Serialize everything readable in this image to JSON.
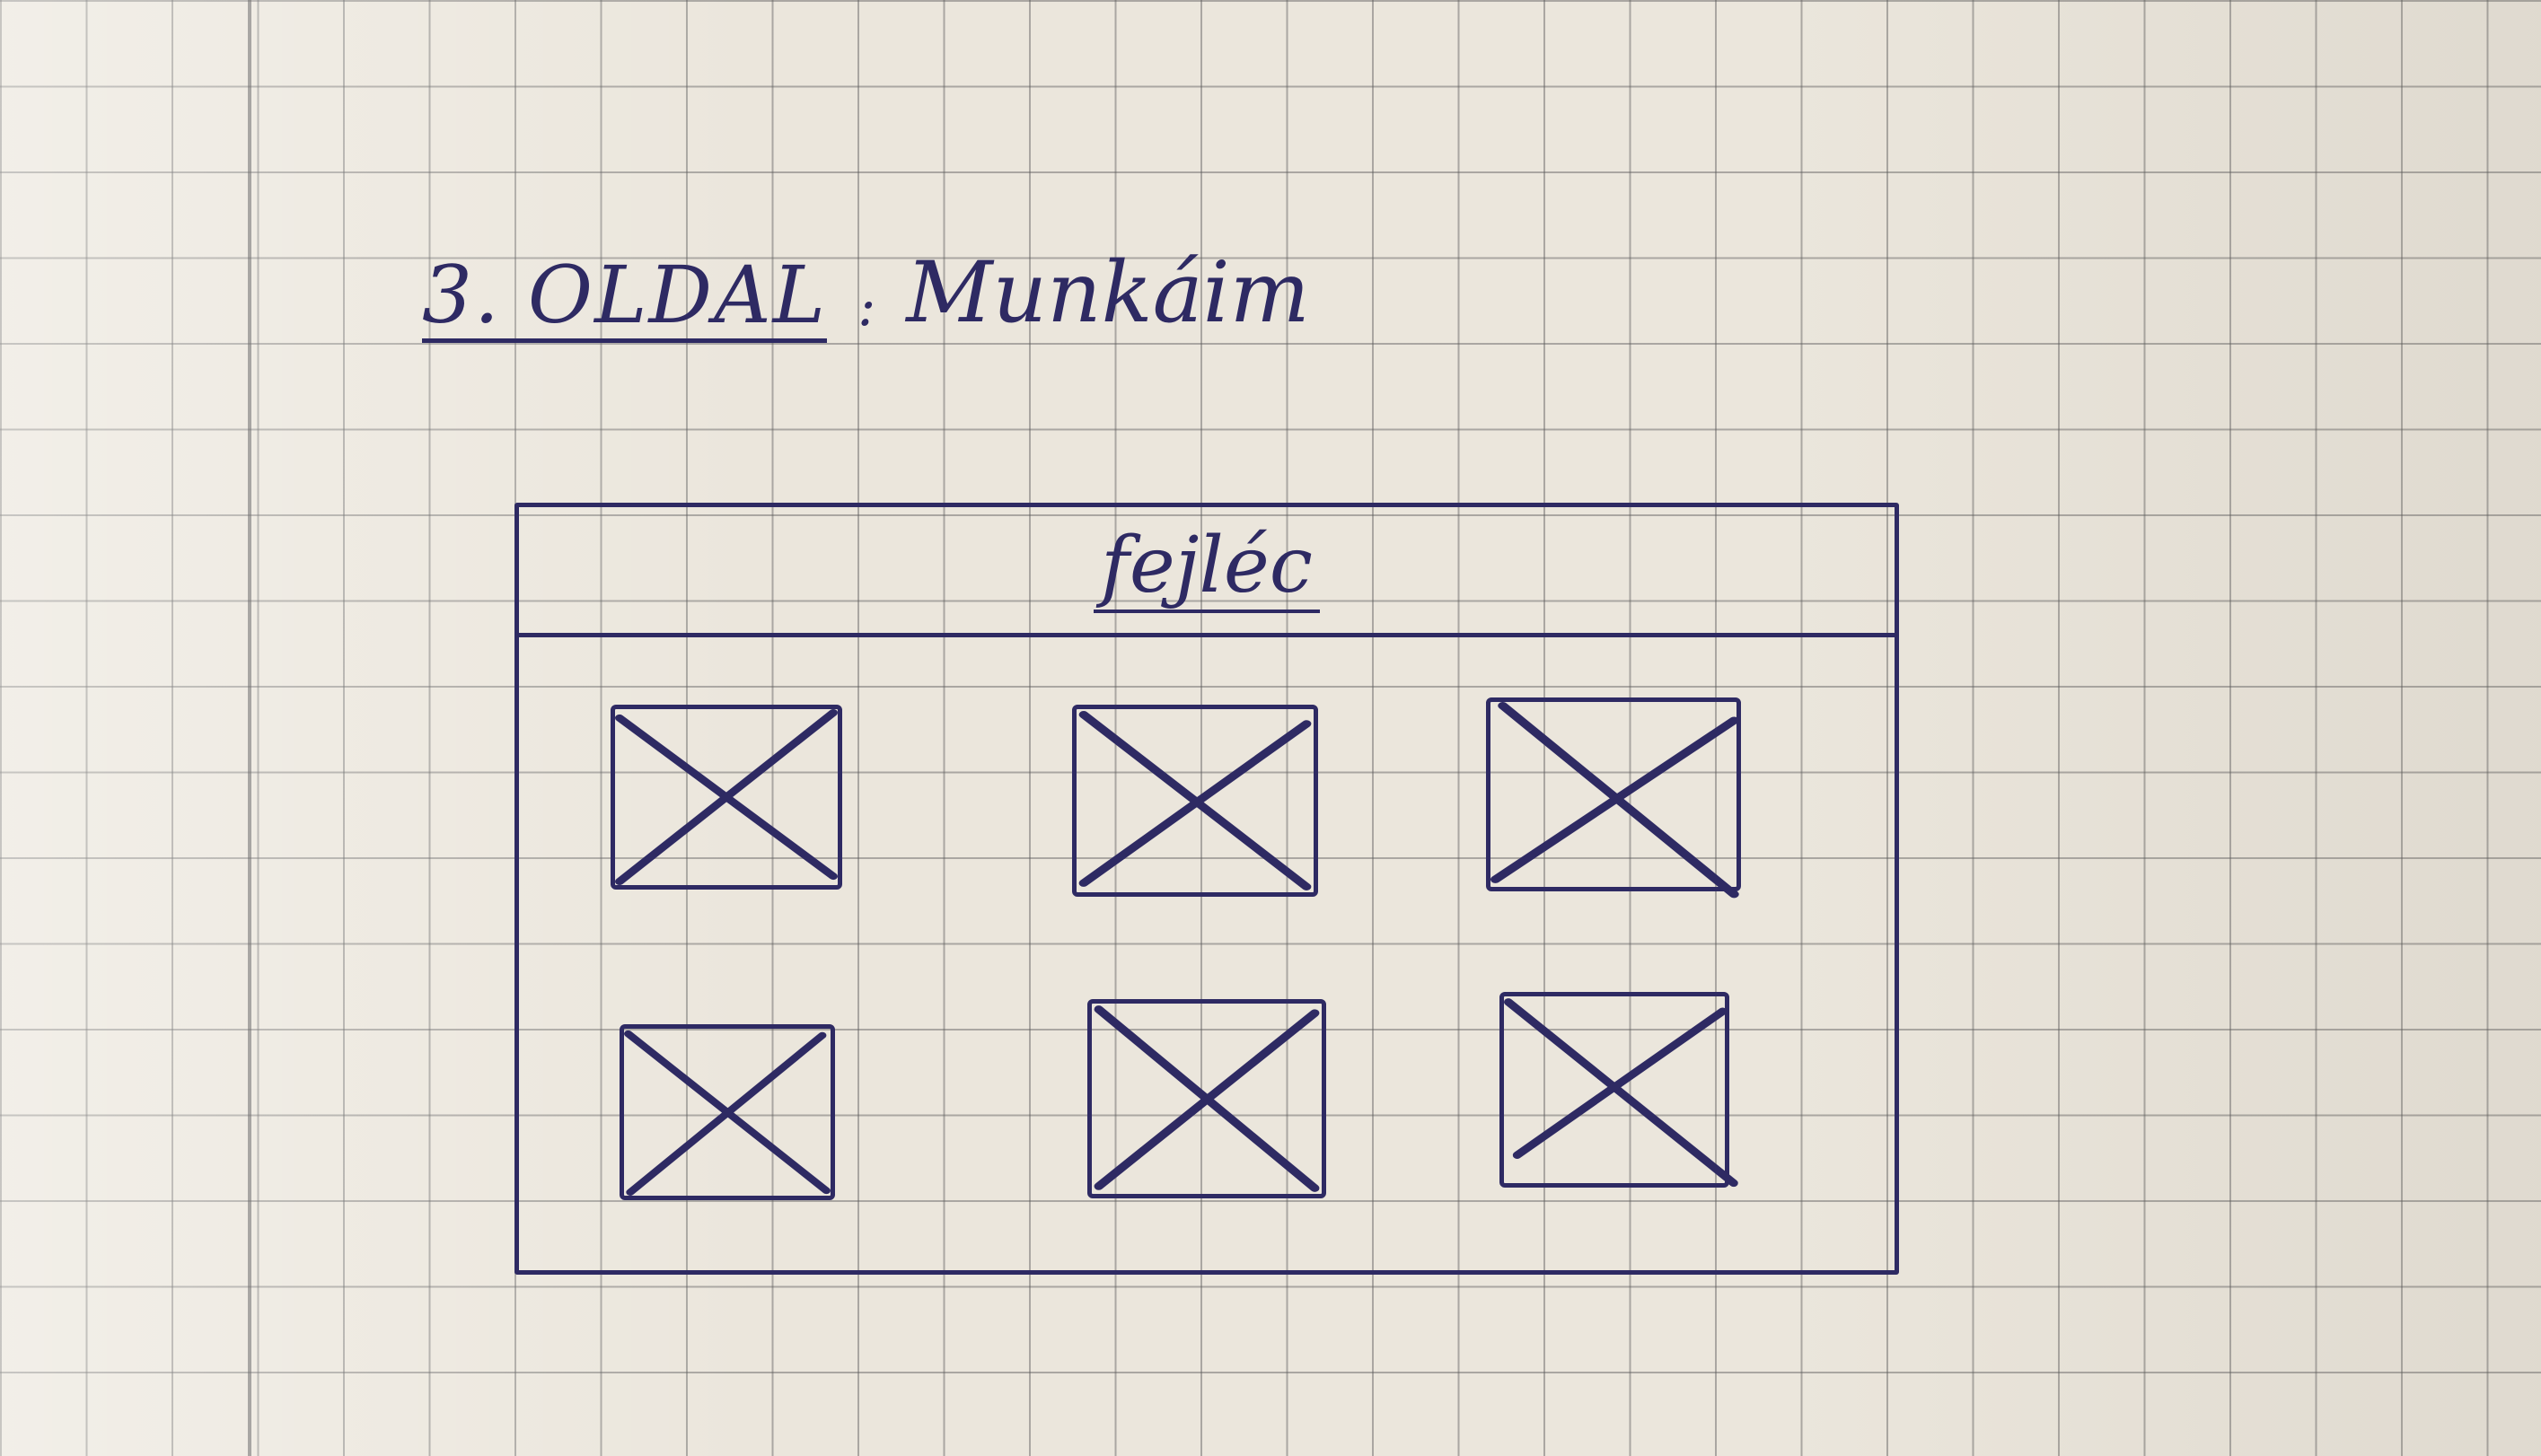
{
  "title": {
    "page_label": "3. OLDAL",
    "separator": ":",
    "page_name": "Munkáim"
  },
  "wireframe": {
    "header_label": "fejléc",
    "placeholders": [
      {
        "name": "image-placeholder-1"
      },
      {
        "name": "image-placeholder-2"
      },
      {
        "name": "image-placeholder-3"
      },
      {
        "name": "image-placeholder-4"
      },
      {
        "name": "image-placeholder-5"
      },
      {
        "name": "image-placeholder-6"
      }
    ]
  },
  "colors": {
    "paper": "#ebe6dc",
    "ink": "#2e2a63",
    "grid": "#5a5a5a"
  }
}
